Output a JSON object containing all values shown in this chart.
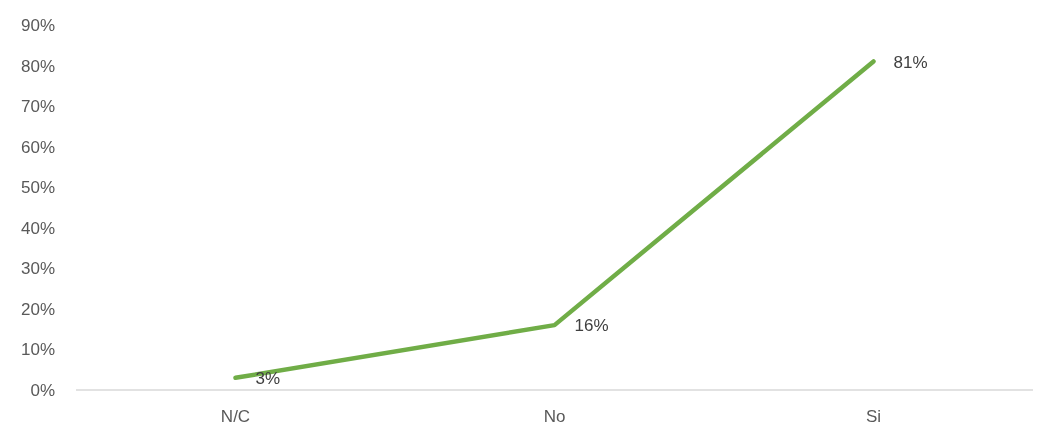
{
  "chart_data": {
    "type": "line",
    "categories": [
      "N/C",
      "No",
      "Si"
    ],
    "series": [
      {
        "color": "#70ad47",
        "values": [
          3,
          16,
          81
        ]
      }
    ],
    "ylim": [
      0,
      90
    ],
    "yticks": [
      {
        "value": 0,
        "label": "0%"
      },
      {
        "value": 10,
        "label": "10%"
      },
      {
        "value": 20,
        "label": "20%"
      },
      {
        "value": 30,
        "label": "30%"
      },
      {
        "value": 40,
        "label": "40%"
      },
      {
        "value": 50,
        "label": "50%"
      },
      {
        "value": 60,
        "label": "60%"
      },
      {
        "value": 70,
        "label": "70%"
      },
      {
        "value": 80,
        "label": "80%"
      },
      {
        "value": 90,
        "label": "90%"
      }
    ],
    "value_labels": [
      "3%",
      "16%",
      "81%"
    ],
    "grid": false,
    "marker": "none",
    "line_style": "solid"
  }
}
